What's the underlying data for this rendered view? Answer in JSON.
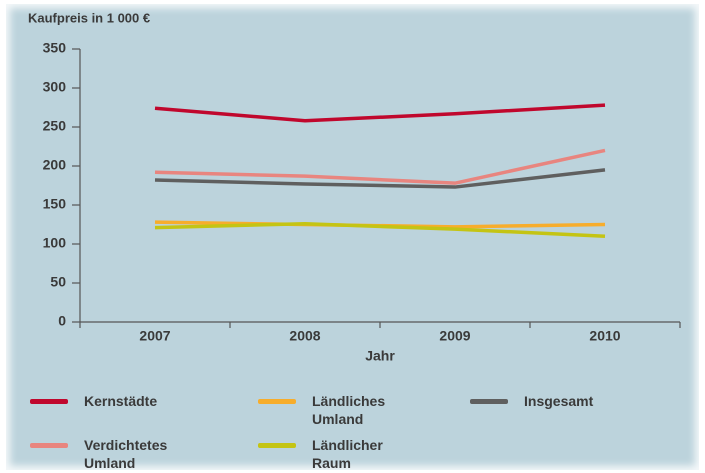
{
  "chart_data": {
    "type": "line",
    "y_axis_label": "Kaufpreis in 1 000 €",
    "x_axis_label": "Jahr",
    "categories": [
      "2007",
      "2008",
      "2009",
      "2010"
    ],
    "series": [
      {
        "name": "Kernstädte",
        "color": "#c0072d",
        "values": [
          274,
          258,
          267,
          278
        ]
      },
      {
        "name": "Verdichtetes Umland",
        "color": "#e8857f",
        "values": [
          192,
          187,
          178,
          220
        ]
      },
      {
        "name": "Ländliches Umland",
        "color": "#f7ad2c",
        "values": [
          128,
          125,
          122,
          125
        ]
      },
      {
        "name": "Ländlicher Raum",
        "color": "#c4c414",
        "values": [
          121,
          126,
          119,
          110
        ]
      },
      {
        "name": "Insgesamt",
        "color": "#5f5f5f",
        "values": [
          182,
          177,
          173,
          195
        ]
      }
    ],
    "ylim": [
      0,
      350
    ],
    "yticks": [
      0,
      50,
      100,
      150,
      200,
      250,
      300,
      350
    ],
    "grid": false
  }
}
